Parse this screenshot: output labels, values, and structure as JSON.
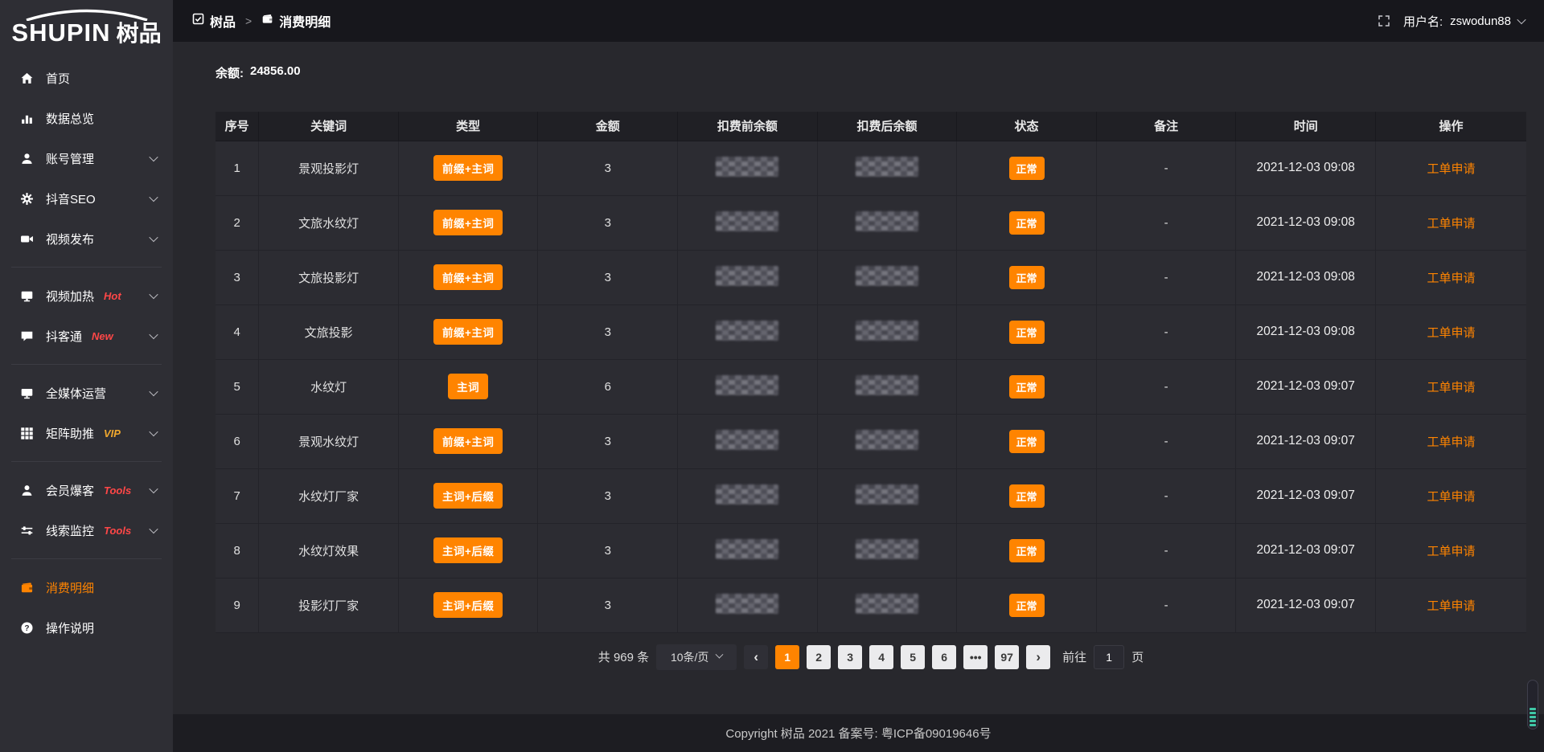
{
  "colors": {
    "accent": "#ff8400",
    "badge-red": "#ff4747",
    "badge-vip": "#f0a82e",
    "teal": "#3fc7a6",
    "sidebar-bg": "#2e2e34",
    "topbar-bg": "#17171c",
    "content-bg": "#28282d",
    "table-header-bg": "#202025",
    "row-bg": "#2c2c32",
    "footer-bg": "#1d1d22",
    "btn-light": "#ebebed",
    "btn-dark": "#2f2f36"
  },
  "sidebar": {
    "logo": {
      "en": "SHUPIN",
      "cn": "树品"
    },
    "items": [
      {
        "id": "home",
        "icon": "home-icon",
        "label": "首页"
      },
      {
        "id": "data",
        "icon": "bar-chart-icon",
        "label": "数据总览"
      },
      {
        "id": "account",
        "icon": "user-icon",
        "label": "账号管理",
        "chevron": true
      },
      {
        "id": "douyin-seo",
        "icon": "gear-icon",
        "label": "抖音SEO",
        "chevron": true
      },
      {
        "id": "publish",
        "icon": "video-camera-icon",
        "label": "视频发布",
        "chevron": true
      },
      {
        "divider": true
      },
      {
        "id": "video-heat",
        "icon": "screen-play-icon",
        "label": "视频加热",
        "badge": "Hot",
        "badge_color": "#ff4747",
        "chevron": true
      },
      {
        "id": "douketong",
        "icon": "chat-icon",
        "label": "抖客通",
        "badge": "New",
        "badge_color": "#ff4747",
        "chevron": true
      },
      {
        "divider": true
      },
      {
        "id": "all-media",
        "icon": "desktop-icon",
        "label": "全媒体运营",
        "chevron": true
      },
      {
        "id": "matrix",
        "icon": "grid-icon",
        "label": "矩阵助推",
        "badge": "VIP",
        "badge_color": "#f0a82e",
        "chevron": true
      },
      {
        "divider": true
      },
      {
        "id": "member",
        "icon": "user-burst-icon",
        "label": "会员爆客",
        "badge": "Tools",
        "badge_color": "#ff4747",
        "chevron": true
      },
      {
        "id": "clue",
        "icon": "sliders-icon",
        "label": "线索监控",
        "badge": "Tools",
        "badge_color": "#ff4747",
        "chevron": true
      },
      {
        "divider": true
      },
      {
        "id": "consume",
        "icon": "wallet-icon",
        "label": "消费明细",
        "active": true
      },
      {
        "id": "help",
        "icon": "question-icon",
        "label": "操作说明"
      }
    ]
  },
  "topbar": {
    "breadcrumb_home": "树品",
    "separator": ">",
    "breadcrumb_current": "消费明细",
    "username_label": "用户名:",
    "username": "zswodun88"
  },
  "balance": {
    "label": "余额:",
    "value": "24856.00"
  },
  "table": {
    "columns": [
      "序号",
      "关键词",
      "类型",
      "金额",
      "扣费前余额",
      "扣费后余额",
      "状态",
      "备注",
      "时间",
      "操作"
    ],
    "masked_columns": [
      4,
      5
    ],
    "rows": [
      [
        "1",
        "景观投影灯",
        "前缀+主词",
        "3",
        "",
        "",
        "正常",
        "-",
        "2021-12-03 09:08",
        "工单申请"
      ],
      [
        "2",
        "文旅水纹灯",
        "前缀+主词",
        "3",
        "",
        "",
        "正常",
        "-",
        "2021-12-03 09:08",
        "工单申请"
      ],
      [
        "3",
        "文旅投影灯",
        "前缀+主词",
        "3",
        "",
        "",
        "正常",
        "-",
        "2021-12-03 09:08",
        "工单申请"
      ],
      [
        "4",
        "文旅投影",
        "前缀+主词",
        "3",
        "",
        "",
        "正常",
        "-",
        "2021-12-03 09:08",
        "工单申请"
      ],
      [
        "5",
        "水纹灯",
        "主词",
        "6",
        "",
        "",
        "正常",
        "-",
        "2021-12-03 09:07",
        "工单申请"
      ],
      [
        "6",
        "景观水纹灯",
        "前缀+主词",
        "3",
        "",
        "",
        "正常",
        "-",
        "2021-12-03 09:07",
        "工单申请"
      ],
      [
        "7",
        "水纹灯厂家",
        "主词+后缀",
        "3",
        "",
        "",
        "正常",
        "-",
        "2021-12-03 09:07",
        "工单申请"
      ],
      [
        "8",
        "水纹灯效果",
        "主词+后缀",
        "3",
        "",
        "",
        "正常",
        "-",
        "2021-12-03 09:07",
        "工单申请"
      ],
      [
        "9",
        "投影灯厂家",
        "主词+后缀",
        "3",
        "",
        "",
        "正常",
        "-",
        "2021-12-03 09:07",
        "工单申请"
      ]
    ]
  },
  "pagination": {
    "total": "共 969 条",
    "page_size": "10条/页",
    "prev_icon": "‹",
    "next_icon": "›",
    "pages": [
      "1",
      "2",
      "3",
      "4",
      "5",
      "6",
      "•••",
      "97"
    ],
    "active_page": "1",
    "goto_label": "前往",
    "goto_value": "1",
    "goto_suffix": "页"
  },
  "footer": {
    "copyright": "Copyright 树品 2021 备案号: 粤ICP备09019646号"
  }
}
